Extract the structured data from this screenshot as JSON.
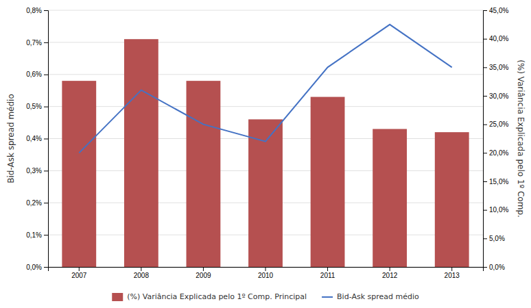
{
  "chart_data": {
    "type": "bar",
    "categories": [
      "2007",
      "2008",
      "2009",
      "2010",
      "2011",
      "2012",
      "2013"
    ],
    "series": [
      {
        "name": "(%) Variância Explicada pelo 1º Comp. Principal",
        "type": "bar",
        "color": "#B55050",
        "values": [
          0.0058,
          0.0071,
          0.0058,
          0.0046,
          0.0053,
          0.0043,
          0.0042
        ]
      },
      {
        "name": "Bid-Ask spread médio",
        "type": "line",
        "color": "#4472C4",
        "axis": "y2",
        "values": [
          0.2,
          0.31,
          0.25,
          0.22,
          0.35,
          0.425,
          0.35
        ]
      }
    ],
    "ylabel": "Bid-Ask spread médio",
    "y2label": "(%) Variância Explicada pelo 1º Comp.",
    "ylim": [
      0,
      0.008
    ],
    "yticks": [
      {
        "value": 0.0,
        "label": "0,0%"
      },
      {
        "value": 0.001,
        "label": "0,1%"
      },
      {
        "value": 0.002,
        "label": "0,2%"
      },
      {
        "value": 0.003,
        "label": "0,3%"
      },
      {
        "value": 0.004,
        "label": "0,4%"
      },
      {
        "value": 0.005,
        "label": "0,5%"
      },
      {
        "value": 0.006,
        "label": "0,6%"
      },
      {
        "value": 0.007,
        "label": "0,7%"
      },
      {
        "value": 0.008,
        "label": "0,8%"
      }
    ],
    "y2lim": [
      0,
      0.45
    ],
    "y2ticks": [
      {
        "value": 0.0,
        "label": "0,0%"
      },
      {
        "value": 0.05,
        "label": "5,0%"
      },
      {
        "value": 0.1,
        "label": "10,0%"
      },
      {
        "value": 0.15,
        "label": "15,0%"
      },
      {
        "value": 0.2,
        "label": "20,0%"
      },
      {
        "value": 0.25,
        "label": "25,0%"
      },
      {
        "value": 0.3,
        "label": "30,0%"
      },
      {
        "value": 0.35,
        "label": "35,0%"
      },
      {
        "value": 0.4,
        "label": "40,0%"
      },
      {
        "value": 0.45,
        "label": "45,0%"
      }
    ],
    "grid": true,
    "legend": "bottom"
  }
}
